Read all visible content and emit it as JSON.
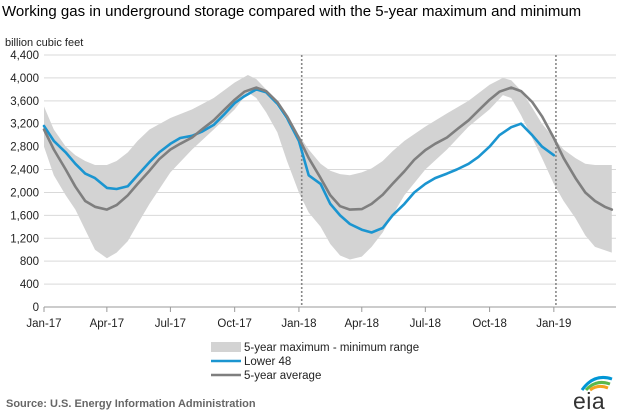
{
  "chart_data": {
    "type": "area",
    "title": "Working gas in underground storage compared with the 5-year maximum and minimum",
    "ylabel": "billion cubic feet",
    "xlabel": "",
    "ylim": [
      0,
      4400
    ],
    "yticks": [
      0,
      400,
      800,
      1200,
      1600,
      2000,
      2400,
      2800,
      3200,
      3600,
      4000,
      4400
    ],
    "xlim": [
      "2017-01-01",
      "2019-03-31"
    ],
    "xticks": [
      "Jan-17",
      "Apr-17",
      "Jul-17",
      "Oct-17",
      "Jan-18",
      "Apr-18",
      "Jul-18",
      "Oct-18",
      "Jan-19"
    ],
    "xtick_dates": [
      "2017-01-01",
      "2017-04-01",
      "2017-07-01",
      "2017-10-01",
      "2018-01-01",
      "2018-04-01",
      "2018-07-01",
      "2018-10-01",
      "2019-01-01"
    ],
    "vertical_markers": [
      "2018-01-05",
      "2019-01-04"
    ],
    "grid": "horizontal",
    "legend_position": "bottom",
    "series": [
      {
        "name": "5-year maximum - minimum range",
        "kind": "band",
        "color": "#d3d3d3",
        "x": [
          "2017-01-01",
          "2017-01-15",
          "2017-02-01",
          "2017-02-15",
          "2017-03-01",
          "2017-03-15",
          "2017-04-01",
          "2017-04-15",
          "2017-05-01",
          "2017-05-15",
          "2017-06-01",
          "2017-07-01",
          "2017-08-01",
          "2017-09-01",
          "2017-10-01",
          "2017-10-20",
          "2017-11-01",
          "2017-11-15",
          "2017-12-01",
          "2017-12-15",
          "2018-01-01",
          "2018-01-15",
          "2018-02-01",
          "2018-02-15",
          "2018-03-01",
          "2018-03-15",
          "2018-04-01",
          "2018-04-15",
          "2018-05-01",
          "2018-05-15",
          "2018-06-01",
          "2018-07-01",
          "2018-08-01",
          "2018-09-01",
          "2018-10-01",
          "2018-10-20",
          "2018-11-01",
          "2018-11-15",
          "2018-12-01",
          "2018-12-15",
          "2019-01-01",
          "2019-01-15",
          "2019-02-01",
          "2019-02-15",
          "2019-03-01",
          "2019-03-25"
        ],
        "max": [
          3500,
          3100,
          2800,
          2650,
          2550,
          2480,
          2480,
          2550,
          2700,
          2900,
          3100,
          3300,
          3450,
          3650,
          3920,
          4050,
          3980,
          3800,
          3500,
          3250,
          3000,
          2750,
          2500,
          2380,
          2320,
          2300,
          2350,
          2420,
          2550,
          2720,
          2900,
          3150,
          3380,
          3600,
          3880,
          4000,
          3960,
          3780,
          3480,
          3200,
          2950,
          2750,
          2600,
          2500,
          2480,
          2480
        ],
        "min": [
          2800,
          2300,
          1950,
          1700,
          1350,
          1000,
          850,
          950,
          1150,
          1450,
          1800,
          2350,
          2750,
          3100,
          3450,
          3750,
          3650,
          3400,
          3050,
          2550,
          2000,
          1650,
          1400,
          1100,
          900,
          830,
          880,
          1050,
          1300,
          1600,
          1950,
          2400,
          2750,
          3150,
          3450,
          3700,
          3650,
          3350,
          2950,
          2600,
          2150,
          1850,
          1550,
          1250,
          1050,
          950
        ]
      },
      {
        "name": "Lower 48",
        "kind": "line",
        "color": "#1b95d0",
        "x": [
          "2017-01-01",
          "2017-01-15",
          "2017-02-01",
          "2017-02-15",
          "2017-03-01",
          "2017-03-15",
          "2017-04-01",
          "2017-04-15",
          "2017-05-01",
          "2017-05-15",
          "2017-06-01",
          "2017-06-15",
          "2017-07-01",
          "2017-07-15",
          "2017-08-01",
          "2017-08-15",
          "2017-09-01",
          "2017-09-15",
          "2017-10-01",
          "2017-10-15",
          "2017-11-01",
          "2017-11-15",
          "2017-12-01",
          "2017-12-15",
          "2018-01-01",
          "2018-01-15",
          "2018-02-01",
          "2018-02-15",
          "2018-03-01",
          "2018-03-15",
          "2018-04-01",
          "2018-04-15",
          "2018-05-01",
          "2018-05-15",
          "2018-06-01",
          "2018-06-15",
          "2018-07-01",
          "2018-07-15",
          "2018-08-01",
          "2018-08-15",
          "2018-09-01",
          "2018-09-15",
          "2018-10-01",
          "2018-10-15",
          "2018-11-01",
          "2018-11-15",
          "2018-12-01",
          "2018-12-15",
          "2019-01-01"
        ],
        "values": [
          3160,
          2900,
          2700,
          2500,
          2330,
          2250,
          2080,
          2060,
          2110,
          2300,
          2530,
          2700,
          2850,
          2950,
          2990,
          3060,
          3180,
          3350,
          3560,
          3680,
          3800,
          3750,
          3550,
          3300,
          2900,
          2300,
          2150,
          1800,
          1600,
          1450,
          1350,
          1300,
          1380,
          1600,
          1800,
          2000,
          2150,
          2250,
          2330,
          2400,
          2500,
          2620,
          2800,
          3000,
          3140,
          3200,
          3000,
          2800,
          2650
        ]
      },
      {
        "name": "5-year average",
        "kind": "line",
        "color": "#7f7f7f",
        "x": [
          "2017-01-01",
          "2017-01-15",
          "2017-02-01",
          "2017-02-15",
          "2017-03-01",
          "2017-03-15",
          "2017-04-01",
          "2017-04-15",
          "2017-05-01",
          "2017-05-15",
          "2017-06-01",
          "2017-06-15",
          "2017-07-01",
          "2017-07-15",
          "2017-08-01",
          "2017-08-15",
          "2017-09-01",
          "2017-09-15",
          "2017-10-01",
          "2017-10-15",
          "2017-11-01",
          "2017-11-15",
          "2017-12-01",
          "2017-12-15",
          "2018-01-01",
          "2018-01-15",
          "2018-02-01",
          "2018-02-15",
          "2018-03-01",
          "2018-03-15",
          "2018-04-01",
          "2018-04-15",
          "2018-05-01",
          "2018-05-15",
          "2018-06-01",
          "2018-06-15",
          "2018-07-01",
          "2018-07-15",
          "2018-08-01",
          "2018-08-15",
          "2018-09-01",
          "2018-09-15",
          "2018-10-01",
          "2018-10-15",
          "2018-11-01",
          "2018-11-15",
          "2018-12-01",
          "2018-12-15",
          "2019-01-01",
          "2019-01-15",
          "2019-02-01",
          "2019-02-15",
          "2019-03-01",
          "2019-03-15",
          "2019-03-25"
        ],
        "values": [
          3100,
          2750,
          2400,
          2100,
          1850,
          1750,
          1700,
          1780,
          1950,
          2150,
          2380,
          2580,
          2750,
          2850,
          2960,
          3100,
          3260,
          3430,
          3620,
          3760,
          3830,
          3770,
          3580,
          3330,
          2950,
          2600,
          2250,
          1950,
          1760,
          1700,
          1710,
          1800,
          1960,
          2150,
          2370,
          2570,
          2740,
          2850,
          2960,
          3100,
          3260,
          3430,
          3620,
          3760,
          3830,
          3770,
          3580,
          3330,
          2950,
          2600,
          2250,
          2000,
          1850,
          1750,
          1700
        ]
      }
    ]
  },
  "source": "Source:  U.S. Energy Information Administration",
  "logo": {
    "text": "eia",
    "colors": [
      "#0096d6",
      "#5bb84a",
      "#f3a21e"
    ]
  }
}
